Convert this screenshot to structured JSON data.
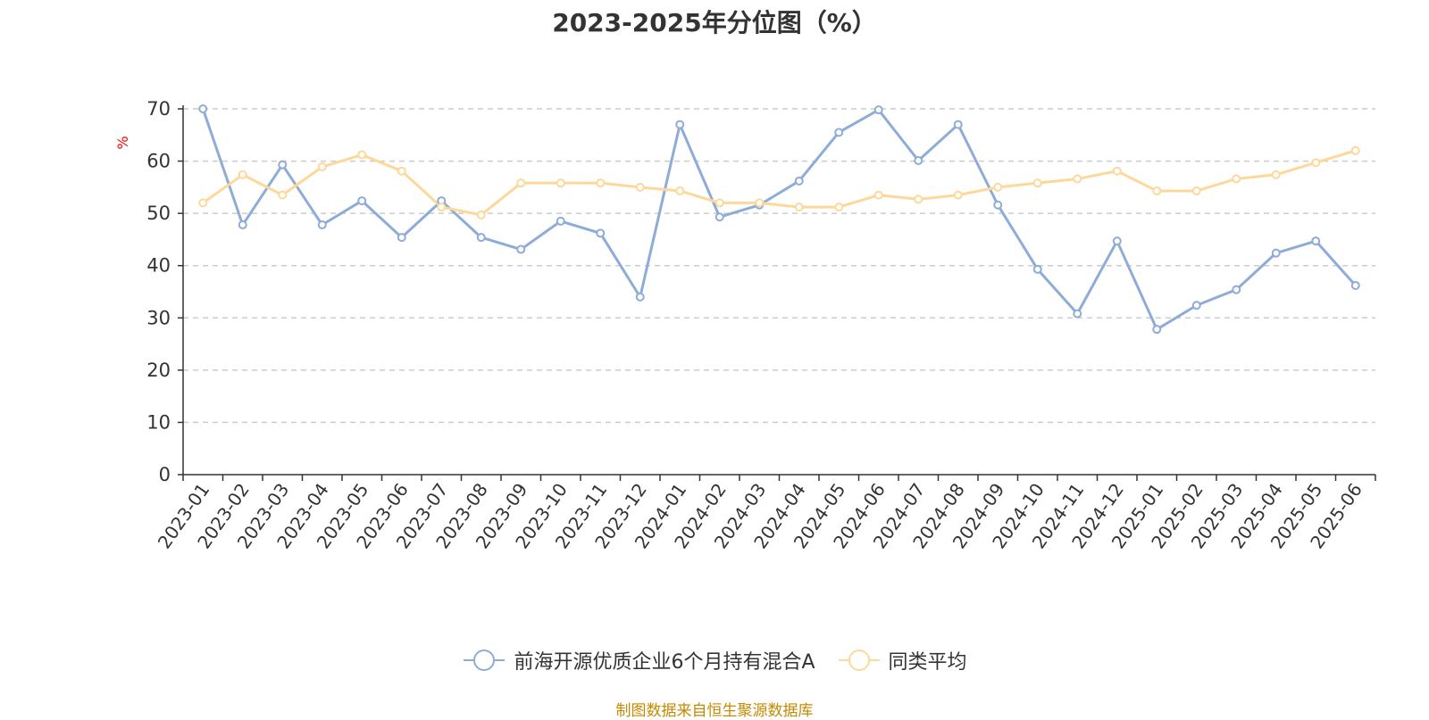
{
  "chart_data": {
    "type": "line",
    "title": "2023-2025年分位图（%）",
    "ylabel": "%",
    "xlabel": "",
    "ylim": [
      0,
      70
    ],
    "yticks": [
      0,
      10,
      20,
      30,
      40,
      50,
      60,
      70
    ],
    "grid": true,
    "legend_position": "bottom",
    "categories": [
      "2023-01",
      "2023-02",
      "2023-03",
      "2023-04",
      "2023-05",
      "2023-06",
      "2023-07",
      "2023-08",
      "2023-09",
      "2023-10",
      "2023-11",
      "2023-12",
      "2024-01",
      "2024-02",
      "2024-03",
      "2024-04",
      "2024-05",
      "2024-06",
      "2024-07",
      "2024-08",
      "2024-09",
      "2024-10",
      "2024-11",
      "2024-12",
      "2025-01",
      "2025-02",
      "2025-03",
      "2025-04",
      "2025-05",
      "2025-06"
    ],
    "series": [
      {
        "name": "前海开源优质企业6个月持有混合A",
        "color": "#8eacd8",
        "values": [
          70.0,
          47.8,
          59.3,
          47.8,
          52.4,
          45.4,
          52.4,
          45.4,
          43.1,
          48.5,
          46.2,
          34.0,
          67.0,
          49.3,
          51.6,
          56.2,
          65.5,
          69.8,
          60.1,
          67.0,
          51.6,
          39.3,
          30.8,
          44.7,
          27.8,
          32.4,
          35.4,
          42.4,
          44.7,
          36.2
        ]
      },
      {
        "name": "同类平均",
        "color": "#fdd89a",
        "values": [
          52.0,
          57.4,
          53.5,
          58.9,
          61.2,
          58.1,
          51.2,
          49.7,
          55.8,
          55.8,
          55.8,
          55.0,
          54.3,
          52.0,
          52.0,
          51.2,
          51.2,
          53.5,
          52.7,
          53.5,
          55.0,
          55.8,
          56.6,
          58.1,
          54.3,
          54.3,
          56.6,
          57.4,
          59.7,
          62.0
        ]
      }
    ]
  },
  "footer": {
    "source_text": "制图数据来自恒生聚源数据库"
  }
}
